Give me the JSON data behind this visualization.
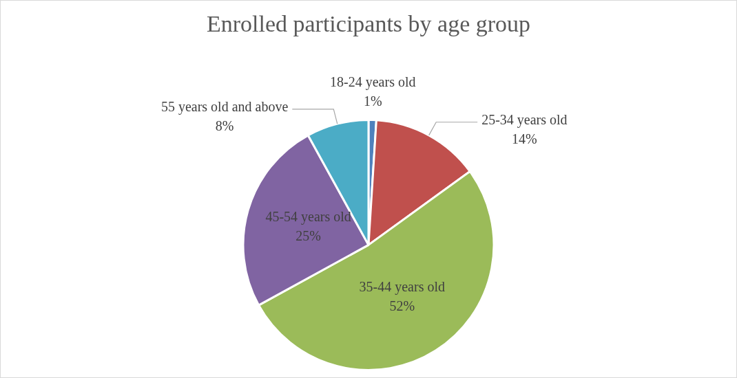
{
  "chart_data": {
    "type": "pie",
    "title": "Enrolled participants by age group",
    "categories": [
      "18-24 years old",
      "25-34 years old",
      "35-44 years old",
      "45-54 years old",
      "55 years old and above"
    ],
    "values": [
      1,
      14,
      52,
      25,
      8
    ],
    "value_labels": [
      "1%",
      "14%",
      "52%",
      "25%",
      "8%"
    ],
    "colors": [
      "#4f81bd",
      "#c0504d",
      "#9bbb59",
      "#8064a2",
      "#4bacc6"
    ],
    "legend": false
  }
}
